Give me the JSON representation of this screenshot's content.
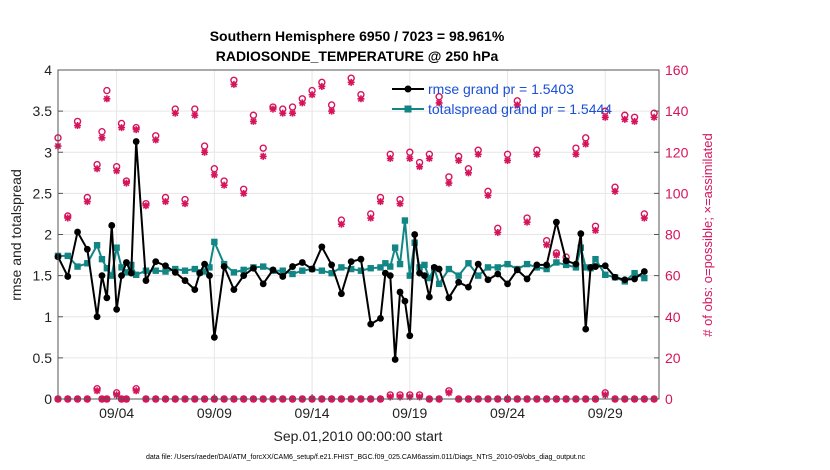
{
  "colors": {
    "rmse": "#000000",
    "spread": "#128585",
    "obs": "#d6145c",
    "legend_text": "#1a4fd6",
    "grid": "#e6e6e6"
  },
  "chart_data": {
    "type": "line",
    "title_line1": "Southern Hemisphere 6950 / 7023 = 98.961%",
    "title_line2": "RADIOSONDE_TEMPERATURE @ 250 hPa",
    "xlabel": "Sep.01,2010 00:00:00 start",
    "ylabel_left": "rmse and totalspread",
    "ylabel_right": "# of obs: o=possible; ×=assimilated",
    "footnote": "data file: /Users/raeder/DAI/ATM_forcXX/CAM6_setup/f.e21.FHIST_BGC.f09_025.CAM6assim.011/Diags_NTrS_2010-09/obs_diag_output.nc",
    "xlim": [
      1,
      31.75
    ],
    "ylim_left": [
      0,
      4
    ],
    "ylim_right": [
      0,
      160
    ],
    "x_ticks": [
      4,
      9,
      14,
      19,
      24,
      29
    ],
    "x_tick_labels": [
      "09/04",
      "09/09",
      "09/14",
      "09/19",
      "09/24",
      "09/29"
    ],
    "y_ticks_left": [
      0,
      0.5,
      1,
      1.5,
      2,
      2.5,
      3,
      3.5,
      4
    ],
    "y_tick_labels_left": [
      "0",
      "0.5",
      "1",
      "1.5",
      "2",
      "2.5",
      "3",
      "3.5",
      "4"
    ],
    "y_ticks_right": [
      0,
      20,
      40,
      60,
      80,
      100,
      120,
      140,
      160
    ],
    "y_tick_labels_right": [
      "0",
      "20",
      "40",
      "60",
      "80",
      "100",
      "120",
      "140",
      "160"
    ],
    "legend": [
      {
        "name": "rmse",
        "label": "rmse grand pr = 1.5403"
      },
      {
        "name": "totalspread",
        "label": "totalspread grand pr = 1.5444"
      }
    ],
    "time": [
      1.0,
      1.5,
      2.0,
      2.5,
      3.0,
      3.25,
      3.5,
      3.75,
      4.0,
      4.25,
      4.5,
      4.75,
      5.0,
      5.5,
      6.0,
      6.5,
      7.0,
      7.5,
      8.0,
      8.25,
      8.5,
      8.75,
      9.0,
      9.5,
      10.0,
      10.5,
      11.0,
      11.5,
      12.0,
      12.5,
      13.0,
      13.5,
      14.0,
      14.5,
      15.0,
      15.5,
      16.0,
      16.5,
      17.0,
      17.5,
      17.75,
      18.0,
      18.25,
      18.5,
      18.75,
      19.0,
      19.25,
      19.5,
      19.75,
      20.0,
      20.25,
      20.5,
      21.0,
      21.5,
      22.0,
      22.5,
      23.0,
      23.5,
      24.0,
      24.5,
      25.0,
      25.5,
      26.0,
      26.5,
      27.0,
      27.5,
      27.75,
      28.0,
      28.25,
      28.5,
      29.0,
      29.5,
      30.0,
      30.5,
      31.0
    ],
    "rmse": [
      1.73,
      1.49,
      2.03,
      1.82,
      1.0,
      1.5,
      1.23,
      2.11,
      1.09,
      1.5,
      1.66,
      1.53,
      3.13,
      1.44,
      1.67,
      1.62,
      1.54,
      1.44,
      1.33,
      1.53,
      1.64,
      1.5,
      0.75,
      1.61,
      1.33,
      1.5,
      1.59,
      1.4,
      1.57,
      1.49,
      1.61,
      1.66,
      1.58,
      1.85,
      1.63,
      1.28,
      1.67,
      1.7,
      0.91,
      0.98,
      1.53,
      1.5,
      0.48,
      1.3,
      1.19,
      0.77,
      2.0,
      1.53,
      1.5,
      1.24,
      1.6,
      1.58,
      1.23,
      1.42,
      1.36,
      1.64,
      1.45,
      1.52,
      1.4,
      1.57,
      1.46,
      1.63,
      1.63,
      2.15,
      1.68,
      1.64,
      2.01,
      0.85,
      1.6,
      1.61,
      1.62,
      1.48,
      1.45,
      1.46,
      1.55
    ],
    "totalspread": [
      1.74,
      1.74,
      1.61,
      1.65,
      1.87,
      1.7,
      1.59,
      1.5,
      1.84,
      1.6,
      1.54,
      1.63,
      1.51,
      1.56,
      1.56,
      1.55,
      1.58,
      1.56,
      1.58,
      1.54,
      1.55,
      1.6,
      1.91,
      1.64,
      1.54,
      1.57,
      1.6,
      1.61,
      1.56,
      1.56,
      1.52,
      1.56,
      1.58,
      1.56,
      1.53,
      1.6,
      1.58,
      1.56,
      1.59,
      1.6,
      1.65,
      1.61,
      1.84,
      1.64,
      2.17,
      1.5,
      1.9,
      1.6,
      1.63,
      1.47,
      1.59,
      1.4,
      1.58,
      1.5,
      1.65,
      1.5,
      1.6,
      1.6,
      1.64,
      1.58,
      1.64,
      1.6,
      1.58,
      1.66,
      1.63,
      1.6,
      1.84,
      1.6,
      1.59,
      1.7,
      1.51,
      1.48,
      1.43,
      1.53,
      1.47
    ],
    "obs_time": [
      1.0,
      1.5,
      2.0,
      2.5,
      3.0,
      3.25,
      3.5,
      4.0,
      4.25,
      4.5,
      5.0,
      5.5,
      6.0,
      6.5,
      7.0,
      7.5,
      8.0,
      8.5,
      9.0,
      9.5,
      10.0,
      10.5,
      11.0,
      11.5,
      12.0,
      12.5,
      13.0,
      13.5,
      14.0,
      14.5,
      15.0,
      15.5,
      16.0,
      16.5,
      17.0,
      17.5,
      18.0,
      18.5,
      19.0,
      19.5,
      20.0,
      20.5,
      21.0,
      21.5,
      22.0,
      22.5,
      23.0,
      23.5,
      24.0,
      24.5,
      25.0,
      25.5,
      26.0,
      26.5,
      27.0,
      27.5,
      28.0,
      28.5,
      29.0,
      29.5,
      30.0,
      30.5,
      31.0,
      31.5
    ],
    "obs_possible": [
      127,
      89,
      135,
      98,
      114,
      130,
      150,
      113,
      134,
      106,
      132,
      95,
      128,
      98,
      141,
      97,
      141,
      123,
      112,
      106,
      155,
      102,
      138,
      122,
      142,
      141,
      142,
      146,
      150,
      154,
      143,
      87,
      156,
      148,
      90,
      98,
      119,
      97,
      120,
      115,
      119,
      147,
      108,
      118,
      112,
      121,
      101,
      83,
      119,
      145,
      88,
      121,
      77,
      71,
      69,
      122,
      127,
      84,
      140,
      103,
      138,
      137,
      90,
      139
    ],
    "obs_assimilated": [
      123,
      88,
      133,
      96,
      112,
      127,
      146,
      111,
      132,
      105,
      131,
      94,
      126,
      96,
      139,
      95,
      138,
      120,
      109,
      104,
      153,
      100,
      135,
      118,
      141,
      139,
      139,
      144,
      148,
      152,
      140,
      85,
      154,
      146,
      88,
      96,
      117,
      95,
      117,
      113,
      117,
      144,
      105,
      116,
      110,
      119,
      99,
      81,
      116,
      143,
      86,
      119,
      75,
      70,
      67,
      119,
      124,
      82,
      137,
      101,
      136,
      135,
      88,
      137
    ],
    "obs_low_possible": [
      0,
      0,
      0,
      0,
      5,
      0,
      0,
      3,
      0,
      0,
      5,
      0,
      0,
      0,
      0,
      0,
      0,
      0,
      0,
      0,
      0,
      0,
      0,
      0,
      0,
      0,
      0,
      0,
      0,
      0,
      0,
      0,
      0,
      0,
      0,
      0,
      2,
      2,
      2,
      2,
      0,
      0,
      4,
      0,
      0,
      0,
      0,
      0,
      0,
      0,
      0,
      0,
      0,
      0,
      0,
      0,
      0,
      0,
      3,
      0,
      0,
      0,
      0,
      0
    ],
    "obs_low_assimilated": [
      0,
      0,
      0,
      0,
      4,
      0,
      0,
      2,
      0,
      0,
      4,
      0,
      0,
      0,
      0,
      0,
      0,
      0,
      0,
      0,
      0,
      0,
      0,
      0,
      0,
      0,
      0,
      0,
      0,
      0,
      0,
      0,
      0,
      0,
      0,
      0,
      1,
      1,
      1,
      1,
      0,
      0,
      3,
      0,
      0,
      0,
      0,
      0,
      0,
      0,
      0,
      0,
      0,
      0,
      0,
      0,
      0,
      0,
      2,
      0,
      0,
      0,
      0,
      0
    ]
  }
}
